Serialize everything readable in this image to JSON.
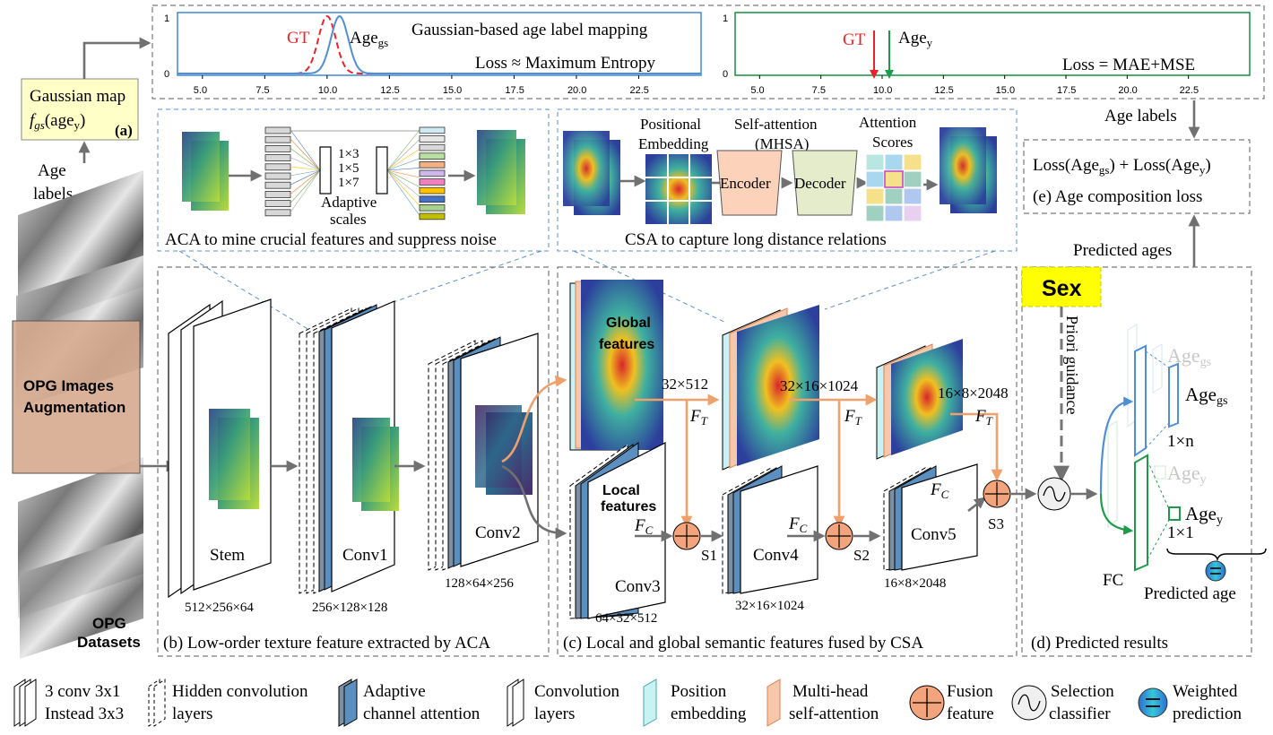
{
  "charts": {
    "left": {
      "ylim": [
        0,
        1
      ],
      "ytick_labels": [
        "0",
        "1"
      ],
      "xtick_labels": [
        "5.0",
        "7.5",
        "10.0",
        "12.5",
        "15.0",
        "17.5",
        "20.0",
        "22.5"
      ],
      "title": "Gaussian-based age label mapping",
      "gt_label": "GT",
      "age_label": "Age",
      "age_sub": "gs",
      "loss_text": "Loss ≈ Maximum Entropy",
      "colors": {
        "gt": "#e8232a",
        "age": "#4f8fd6",
        "frame": "#4f8fd6"
      }
    },
    "right": {
      "ylim": [
        0,
        1
      ],
      "ytick_labels": [
        "0",
        "1"
      ],
      "xtick_labels": [
        "5.0",
        "7.5",
        "10.0",
        "12.5",
        "15.0",
        "17.5",
        "20.0",
        "22.5"
      ],
      "gt_label": "GT",
      "age_label": "Age",
      "age_sub": "y",
      "loss_text": "Loss = MAE+MSE",
      "colors": {
        "gt": "#e8232a",
        "age": "#1f9a4a",
        "frame": "#1f9a4a"
      }
    }
  },
  "gaussian_map": {
    "line1": "Gaussian map",
    "f": "f",
    "f_sub": "gs",
    "arg": "(age",
    "arg_sub": "y",
    "close": ")",
    "tag": "(a)"
  },
  "age_labels_left": {
    "line1": "Age",
    "line2": "labels"
  },
  "age_labels_right": "Age labels",
  "loss_box": {
    "formula_a": "Loss(Age",
    "sub_a": "gs",
    "formula_b": ") + Loss(Age",
    "sub_b": "y",
    "formula_c": ")",
    "caption": "(e) Age composition loss"
  },
  "predicted_ages": "Predicted ages",
  "aca": {
    "k1": "1×3",
    "k2": "1×5",
    "k3": "1×7",
    "adaptive_line1": "Adaptive",
    "adaptive_line2": "scales",
    "caption": "ACA to mine crucial features and suppress noise"
  },
  "csa": {
    "pos_line1": "Positional",
    "pos_line2": "Embedding",
    "self_line1": "Self-attention",
    "self_line2": "(MHSA)",
    "score_line1": "Attention",
    "score_line2": "Scores",
    "encoder": "Encoder",
    "decoder": "Decoder",
    "caption": "CSA to capture long distance relations"
  },
  "augmentation": {
    "line1": "OPG Images",
    "line2": "Augmentation"
  },
  "datasets": {
    "line1": "OPG",
    "line2": "Datasets"
  },
  "stages": {
    "stem": "Stem",
    "stem_dim": "512×256×64",
    "conv1": "Conv1",
    "conv1_dim": "256×128×128",
    "conv2": "Conv2",
    "conv2_dim": "128×64×256",
    "conv3": "Conv3",
    "conv3_dim": "64×32×512",
    "conv4": "Conv4",
    "conv4_dim": "32×16×1024",
    "conv5": "Conv5",
    "conv5_dim": "16×8×2048"
  },
  "global_features": {
    "line1": "Global",
    "line2": "features"
  },
  "local_features": {
    "line1": "Local",
    "line2": "features"
  },
  "dims_top": {
    "d1": "32×512",
    "d2": "32×16×1024",
    "d3": "16×8×2048"
  },
  "ft_label": {
    "f": "F",
    "sub": "T"
  },
  "fc_label": {
    "f": "F",
    "sub": "C"
  },
  "s_labels": [
    "S1",
    "S2",
    "S3"
  ],
  "captions": {
    "b": "(b) Low-order texture feature extracted by ACA",
    "c": "(c) Local and global semantic features fused by CSA",
    "d": "(d) Predicted results"
  },
  "sex": "Sex",
  "priori": "Priori guidance",
  "pred": {
    "age": "Age",
    "gs_sub": "gs",
    "y_sub": "y",
    "one_n": "1×n",
    "one_one": "1×1",
    "fc": "FC",
    "predicted_age": "Predicted age"
  },
  "legend": {
    "l1a": "3 conv 3x1",
    "l1b": "Instead 3x3",
    "l2a": "Hidden convolution",
    "l2b": "layers",
    "l3a": "Adaptive",
    "l3b": "channel attention",
    "l4a": "Convolution",
    "l4b": "layers",
    "l5a": "Position",
    "l5b": "embedding",
    "l6a": "Multi-head",
    "l6b": "self-attention",
    "l7a": "Fusion",
    "l7b": "feature",
    "l8a": "Selection",
    "l8b": "classifier",
    "l9a": "Weighted",
    "l9b": "prediction"
  }
}
